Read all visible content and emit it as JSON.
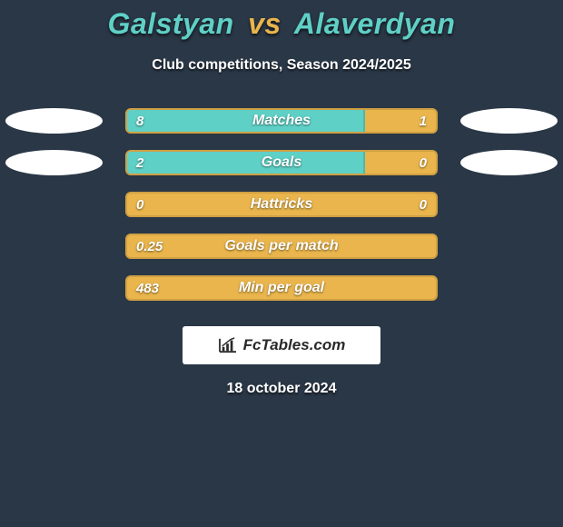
{
  "background_color": "#2a3746",
  "title": {
    "player1": "Galstyan",
    "vs": "vs",
    "player2": "Alaverdyan",
    "p1_color": "#5fd0c6",
    "vs_color": "#e9b54c",
    "p2_color": "#5fd0c6",
    "fontsize": 32
  },
  "subtitle": "Club competitions, Season 2024/2025",
  "oval_color": "#ffffff",
  "bar_colors": {
    "left": "#5fd0c6",
    "right": "#e9b54c",
    "text": "#ffffff"
  },
  "stats": [
    {
      "label": "Matches",
      "left_value": "8",
      "right_value": "1",
      "left_pct": 77,
      "show_left_oval": true,
      "show_right_oval": true
    },
    {
      "label": "Goals",
      "left_value": "2",
      "right_value": "0",
      "left_pct": 77,
      "show_left_oval": true,
      "show_right_oval": true
    },
    {
      "label": "Hattricks",
      "left_value": "0",
      "right_value": "0",
      "left_pct": 0,
      "show_left_oval": false,
      "show_right_oval": false
    },
    {
      "label": "Goals per match",
      "left_value": "0.25",
      "right_value": "",
      "left_pct": 0,
      "show_left_oval": false,
      "show_right_oval": false
    },
    {
      "label": "Min per goal",
      "left_value": "483",
      "right_value": "",
      "left_pct": 0,
      "show_left_oval": false,
      "show_right_oval": false
    }
  ],
  "footer": {
    "brand": "FcTables.com",
    "box_bg": "#ffffff",
    "text_color": "#2a2a2a"
  },
  "date": "18 october 2024"
}
